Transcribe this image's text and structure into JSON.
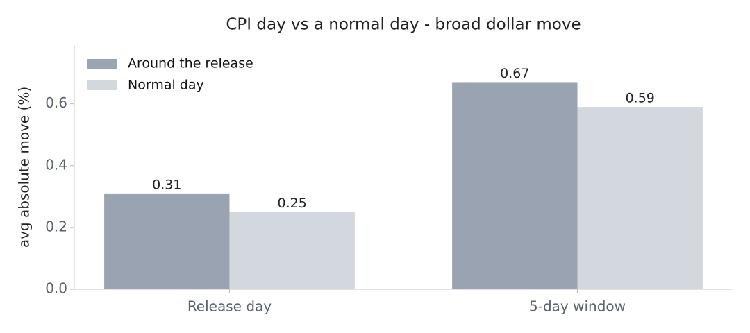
{
  "chart_data": {
    "type": "bar",
    "title": "CPI day vs a normal day - broad dollar move",
    "y_label": "avg absolute move (%)",
    "categories": [
      "Release day",
      "5-day window"
    ],
    "series": [
      {
        "name": "Around the release",
        "color": "#9aa3b1",
        "values": [
          0.31,
          0.67
        ]
      },
      {
        "name": "Normal day",
        "color": "#d3d7de",
        "values": [
          0.25,
          0.59
        ]
      }
    ],
    "ylim": [
      0,
      0.79
    ],
    "yticks": [
      {
        "value": 0,
        "label": "0.0"
      },
      0.2,
      0.4,
      0.6
    ],
    "legend": "upper-left",
    "grid": false
  }
}
